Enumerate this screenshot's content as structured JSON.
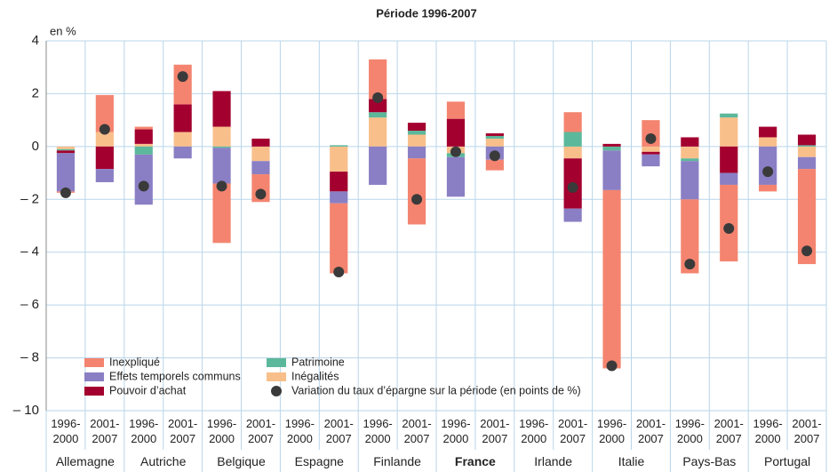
{
  "chart_data": {
    "type": "stacked_bar",
    "title": "Période 1996-2007",
    "y_unit_label": "en %",
    "categories": [
      "1996-\n2000",
      "2001-\n2007",
      "1996-\n2000",
      "2001-\n2007",
      "1996-\n2000",
      "2001-\n2007",
      "1996-\n2000",
      "2001-\n2007",
      "1996-\n2000",
      "2001-\n2007",
      "1996-\n2000",
      "2001-\n2007",
      "1996-\n2000",
      "2001-\n2007",
      "1996-\n2000",
      "2001-\n2007",
      "1996-\n2000",
      "2001-\n2007",
      "1996-\n2000",
      "2001-\n2007"
    ],
    "groups": [
      "Allemagne",
      "Autriche",
      "Belgique",
      "Espagne",
      "Finlande",
      "France",
      "Irlande",
      "Italie",
      "Pays-Bas",
      "Portugal"
    ],
    "bold_groups": [
      5
    ],
    "series": [
      {
        "name": "Inégalités",
        "color": "#f9bf8b",
        "values": [
          -0.1,
          0.55,
          0.1,
          0.55,
          0.75,
          -0.55,
          null,
          -0.95,
          1.1,
          0.45,
          -0.25,
          0.3,
          null,
          -0.45,
          null,
          -0.2,
          -0.45,
          1.1,
          0.35,
          -0.4
        ]
      },
      {
        "name": "Patrimoine",
        "color": "#5cb89a",
        "values": [
          -0.05,
          null,
          -0.3,
          null,
          -0.05,
          null,
          null,
          0.05,
          0.2,
          0.15,
          -0.15,
          0.1,
          null,
          0.55,
          -0.15,
          null,
          -0.1,
          0.15,
          null,
          0.05
        ]
      },
      {
        "name": "Pouvoir d’achat",
        "color": "#a3002f",
        "values": [
          -0.1,
          -0.85,
          0.55,
          1.05,
          1.35,
          0.3,
          null,
          -0.75,
          0.5,
          0.3,
          1.05,
          0.1,
          null,
          -1.9,
          0.1,
          -0.1,
          0.35,
          -1.0,
          0.4,
          0.4
        ]
      },
      {
        "name": "Effets temporels communs",
        "color": "#8a7fc4",
        "values": [
          -1.45,
          -0.5,
          -1.9,
          -0.45,
          -1.35,
          -0.5,
          null,
          -0.45,
          -1.45,
          -0.45,
          -1.5,
          -0.5,
          null,
          -0.5,
          -1.5,
          -0.45,
          -1.45,
          -0.45,
          -1.45,
          -0.45
        ]
      },
      {
        "name": "Inexpliqué",
        "color": "#f4846f",
        "values": [
          -0.05,
          1.4,
          0.1,
          1.5,
          -2.25,
          -1.05,
          null,
          -2.65,
          1.5,
          -2.5,
          0.65,
          -0.4,
          null,
          0.75,
          -6.75,
          1.0,
          -2.8,
          -2.9,
          -0.25,
          -3.6
        ]
      }
    ],
    "markers": {
      "name": "Variation du taux d’épargne sur la période (en points de %)",
      "color": "#3a3a3a",
      "values": [
        -1.75,
        0.65,
        -1.5,
        2.65,
        -1.5,
        -1.8,
        null,
        -4.75,
        1.85,
        -2.0,
        -0.2,
        -0.35,
        null,
        -1.55,
        -8.3,
        0.3,
        -4.45,
        -3.1,
        -0.95,
        -3.95
      ]
    },
    "ylim": [
      -10,
      4
    ],
    "yticks": [
      {
        "value": -10,
        "label": "– 10"
      },
      {
        "value": -8,
        "label": "– 8"
      },
      {
        "value": -6,
        "label": "– 6"
      },
      {
        "value": -4,
        "label": "– 4"
      },
      {
        "value": -2,
        "label": "– 2"
      },
      0,
      2,
      4
    ],
    "grid": true
  }
}
